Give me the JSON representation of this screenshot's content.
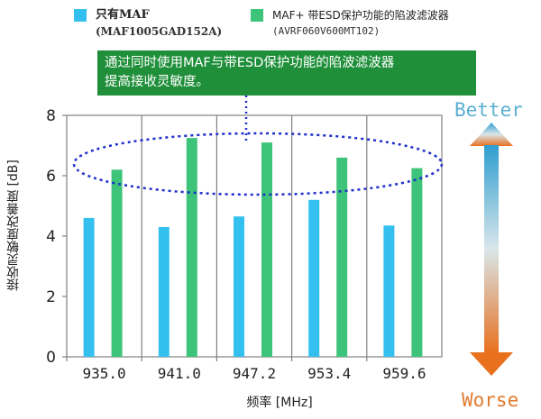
{
  "colors": {
    "series1": "#33c0ef",
    "series2": "#3ec47a",
    "callout_bg": "#1f8f3a",
    "grid": "#808080",
    "ellipse": "#1f2fcc",
    "better": "#5aaed0",
    "worse": "#e07a2e"
  },
  "legend": [
    {
      "name": "只有MAF",
      "part": "(MAF1005GAD152A)"
    },
    {
      "name": "MAF+ 带ESD保护功能的陷波滤波器",
      "part": "(AVRF060V600MT102)"
    }
  ],
  "callout": {
    "line1": "通过同时使用MAF与带ESD保护功能的陷波滤波器",
    "line2": "提高接收灵敏度。"
  },
  "indicator": {
    "top": "Better",
    "bottom": "Worse"
  },
  "chart_data": {
    "type": "bar",
    "categories": [
      "935.0",
      "941.0",
      "947.2",
      "953.4",
      "959.6"
    ],
    "series": [
      {
        "name": "只有MAF (MAF1005GAD152A)",
        "values": [
          4.6,
          4.3,
          4.65,
          5.2,
          4.35
        ]
      },
      {
        "name": "MAF+ 带ESD保护功能的陷波滤波器 (AVRF060V600MT102)",
        "values": [
          6.2,
          7.25,
          7.1,
          6.6,
          6.25
        ]
      }
    ],
    "xlabel": "频率 [MHz]",
    "ylabel": "接收灵敏度改善度 [dB]",
    "ylim": [
      0,
      8
    ],
    "yticks": [
      "0",
      "2",
      "4",
      "6",
      "8"
    ],
    "grid": true,
    "legend_position": "top"
  }
}
